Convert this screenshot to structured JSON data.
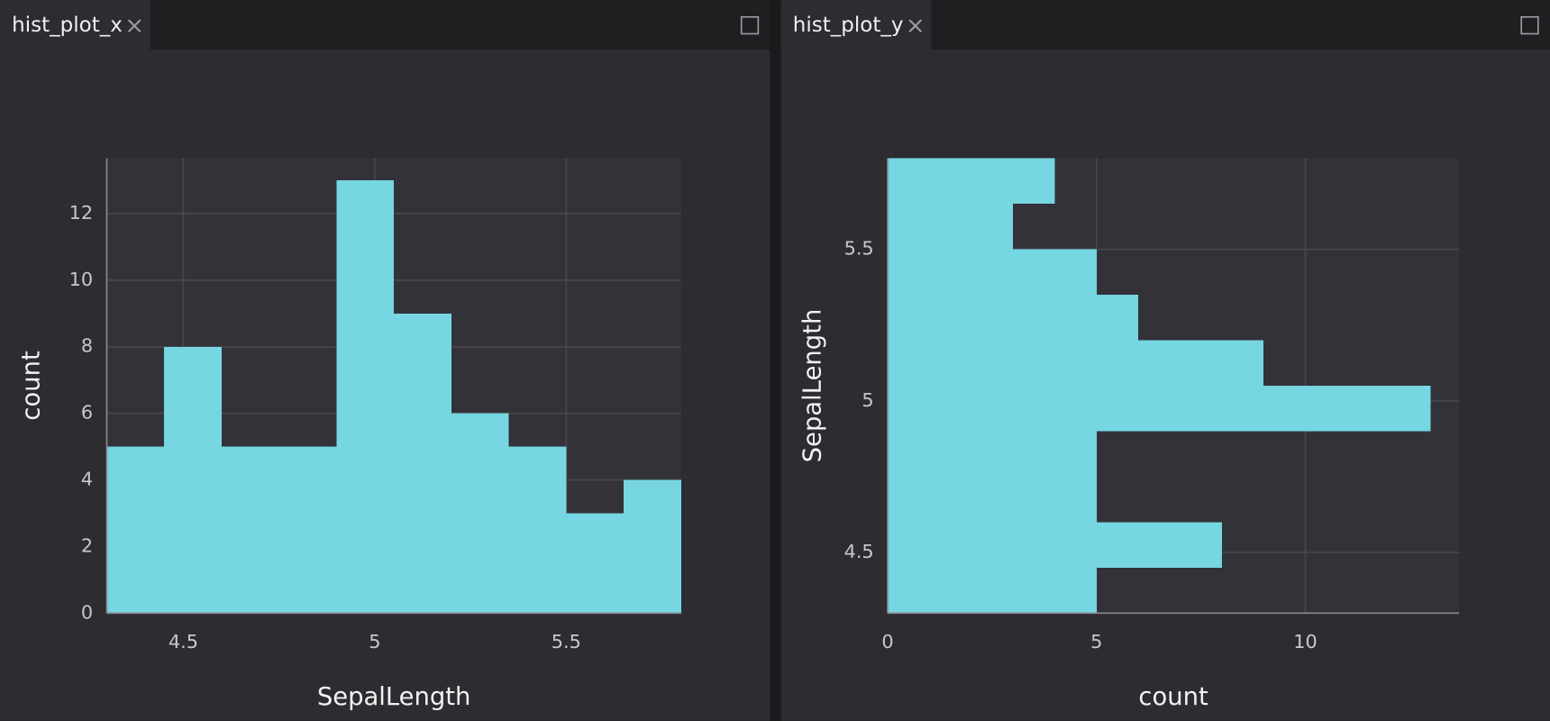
{
  "chart_data": [
    {
      "type": "histogram",
      "title": "hist_plot_x",
      "orientation": "vertical",
      "color": "#76d6e2",
      "grid": true,
      "xlabel": "SepalLength",
      "ylabel": "count",
      "bins": [
        4.3,
        4.45,
        4.6,
        4.75,
        4.9,
        5.05,
        5.2,
        5.35,
        5.5,
        5.65,
        5.8
      ],
      "values": [
        5,
        8,
        5,
        5,
        13,
        9,
        6,
        5,
        3,
        4
      ],
      "xlim": [
        4.3,
        5.8
      ],
      "xticks": [
        4.5,
        5,
        5.5
      ],
      "ylim": [
        0,
        13.66
      ],
      "yticks": [
        0,
        2,
        4,
        6,
        8,
        10,
        12
      ]
    },
    {
      "type": "histogram",
      "title": "hist_plot_y",
      "orientation": "horizontal",
      "color": "#76d6e2",
      "grid": true,
      "xlabel": "count",
      "ylabel": "SepalLength",
      "bins": [
        4.3,
        4.45,
        4.6,
        4.75,
        4.9,
        5.05,
        5.2,
        5.35,
        5.5,
        5.65,
        5.8
      ],
      "values": [
        5,
        8,
        5,
        5,
        13,
        9,
        6,
        5,
        3,
        4
      ],
      "xlim": [
        0,
        13.68
      ],
      "xticks": [
        0,
        5,
        10
      ],
      "ylim": [
        4.3,
        5.8
      ],
      "yticks": [
        4.5,
        5,
        5.5
      ]
    }
  ]
}
